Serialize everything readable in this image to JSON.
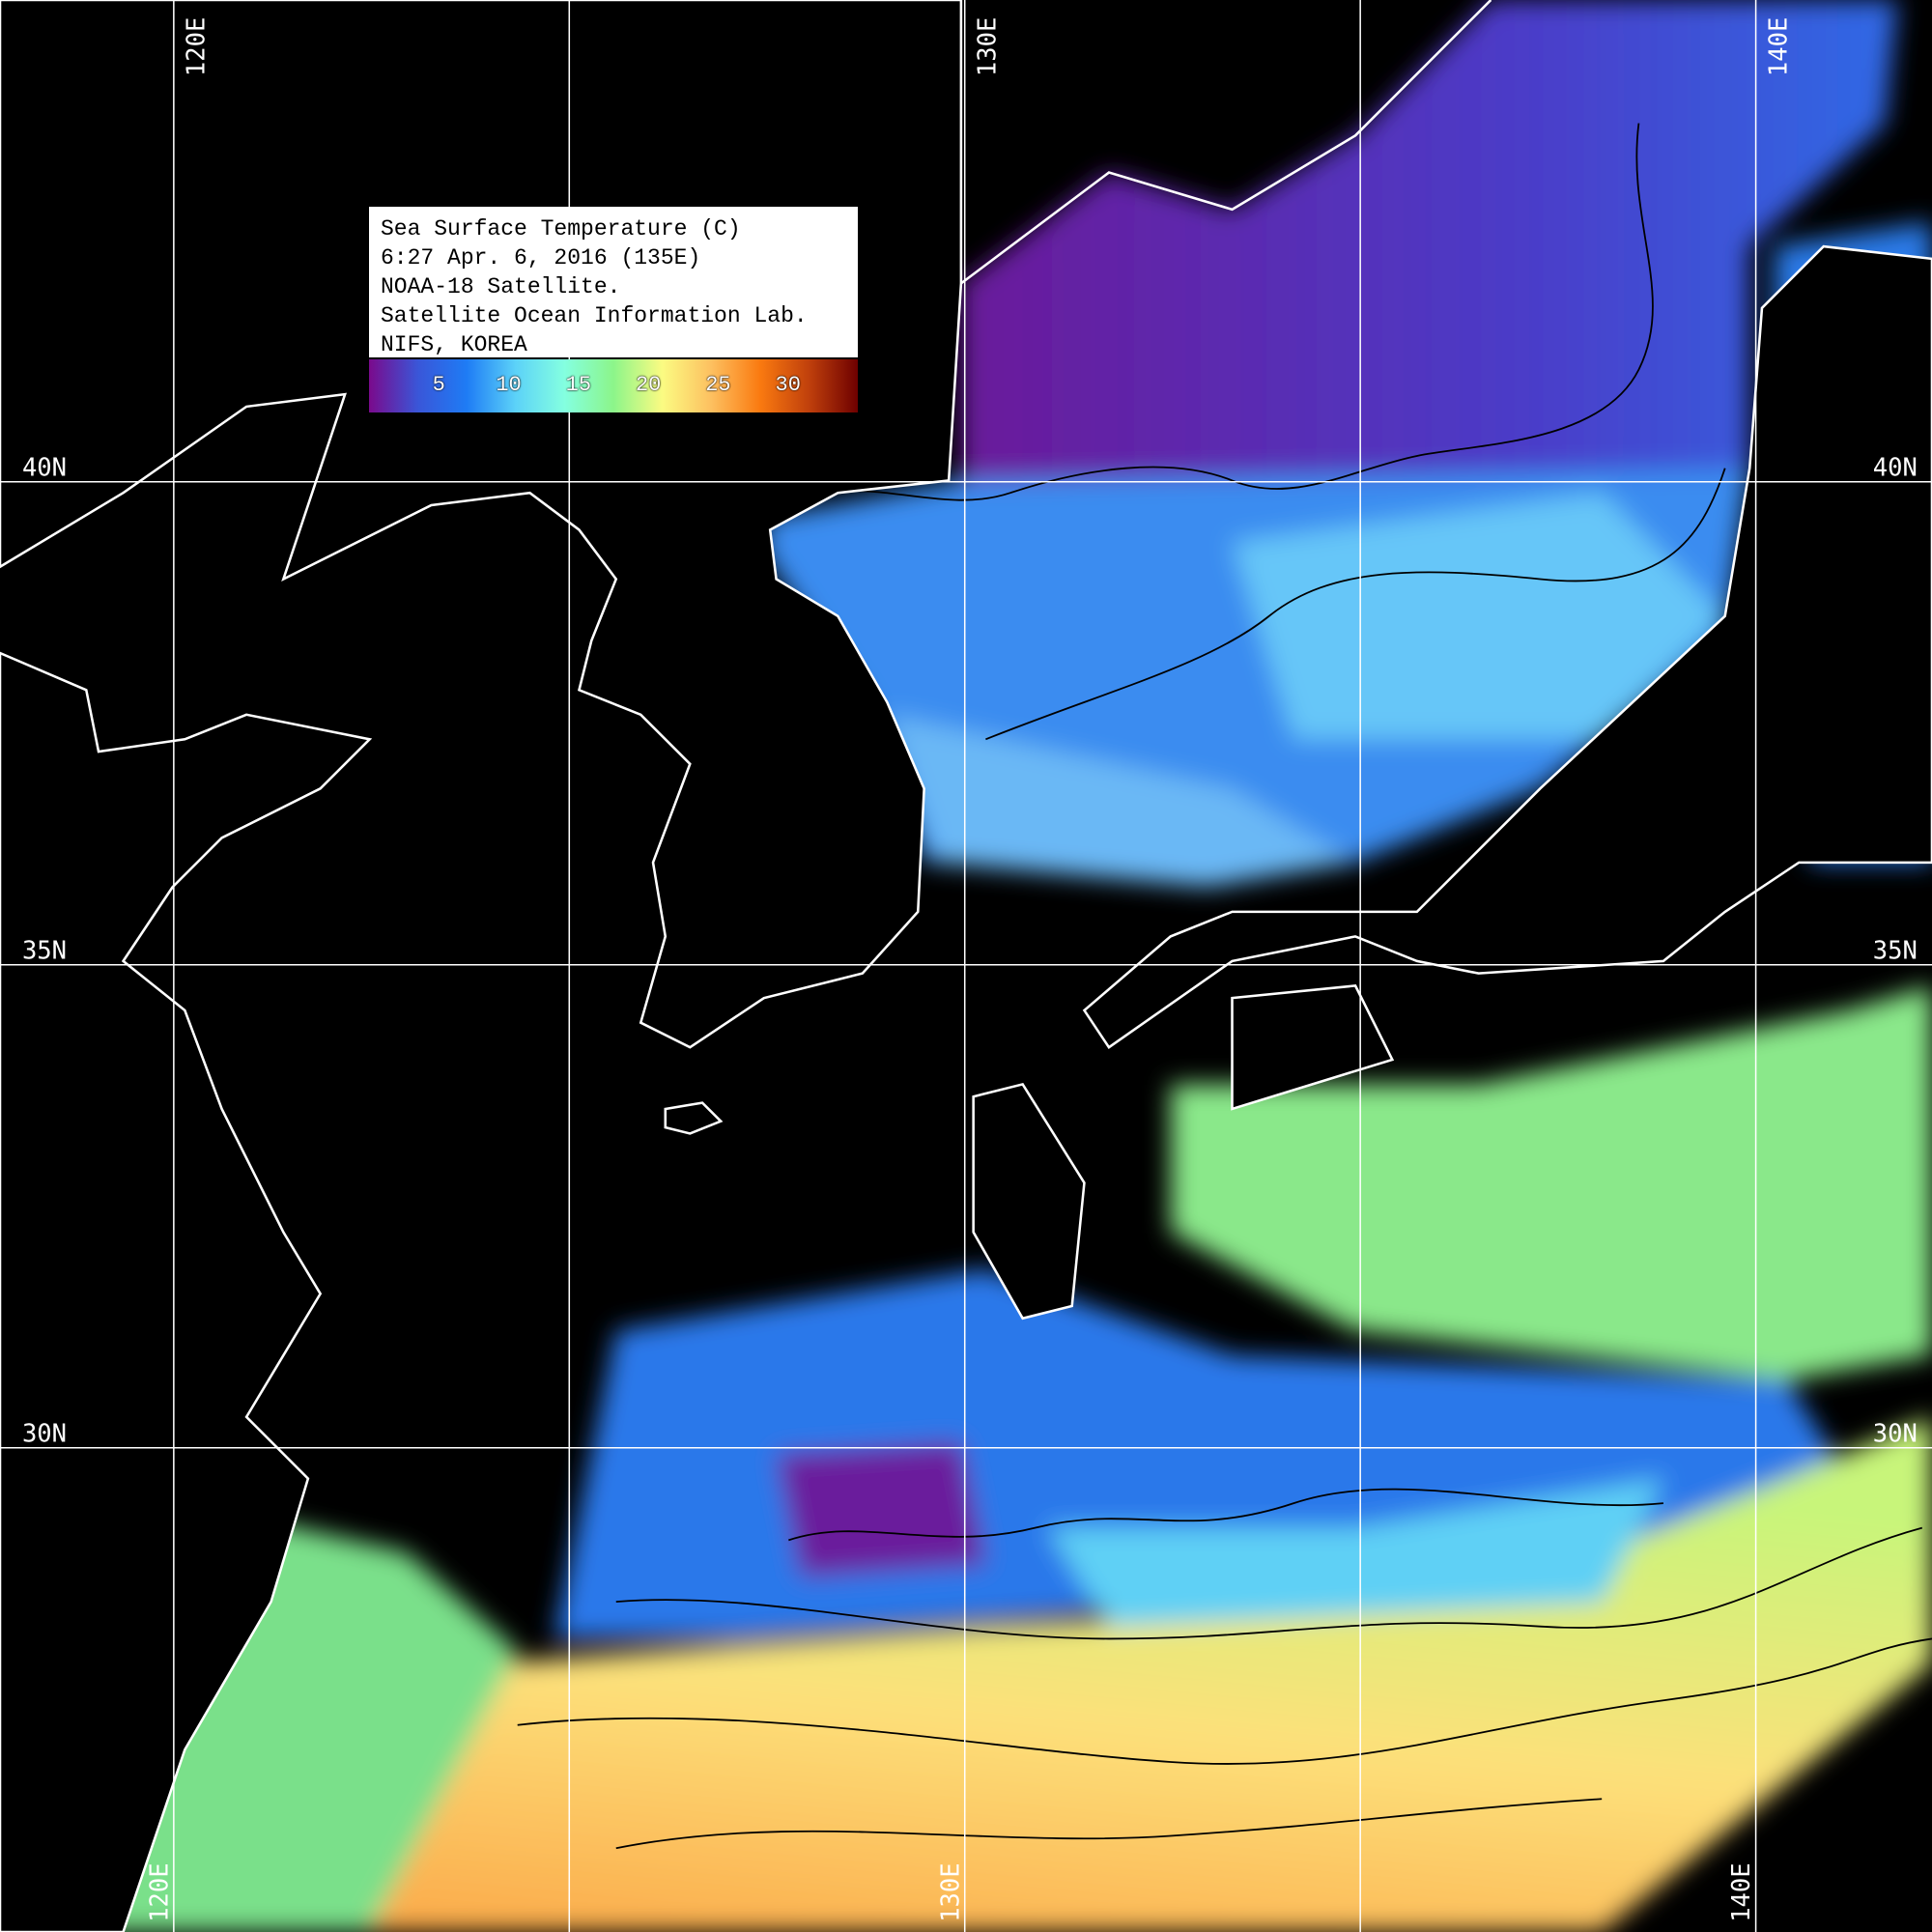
{
  "legend": {
    "lines": [
      "Sea Surface Temperature (C)",
      "6:27 Apr. 6, 2016 (135E)",
      "NOAA-18 Satellite.",
      "Satellite Ocean Information Lab.",
      "NIFS, KOREA"
    ],
    "colorbar": {
      "ticks": [
        "5",
        "10",
        "15",
        "20",
        "25",
        "30"
      ],
      "tick_values": [
        5,
        10,
        15,
        20,
        25,
        30
      ],
      "range": [
        0,
        35
      ],
      "colors": [
        "#7a0a8c",
        "#3a56d8",
        "#1e7cf5",
        "#5cd2f8",
        "#84ffe0",
        "#8cf58a",
        "#fbfb82",
        "#fdc060",
        "#fa7a10",
        "#c0400c",
        "#6e0000"
      ]
    }
  },
  "grid": {
    "lon_labels_top": [
      "120E",
      "130E",
      "140E"
    ],
    "lon_labels_bottom": [
      "120E",
      "130E",
      "140E"
    ],
    "lat_labels_left": [
      "40N",
      "35N",
      "30N"
    ],
    "lat_labels_right": [
      "40N",
      "35N",
      "30N"
    ]
  },
  "colors": {
    "background": "#000000",
    "coastline": "#ffffff",
    "grid": "#ffffff",
    "contour": "#000000"
  }
}
